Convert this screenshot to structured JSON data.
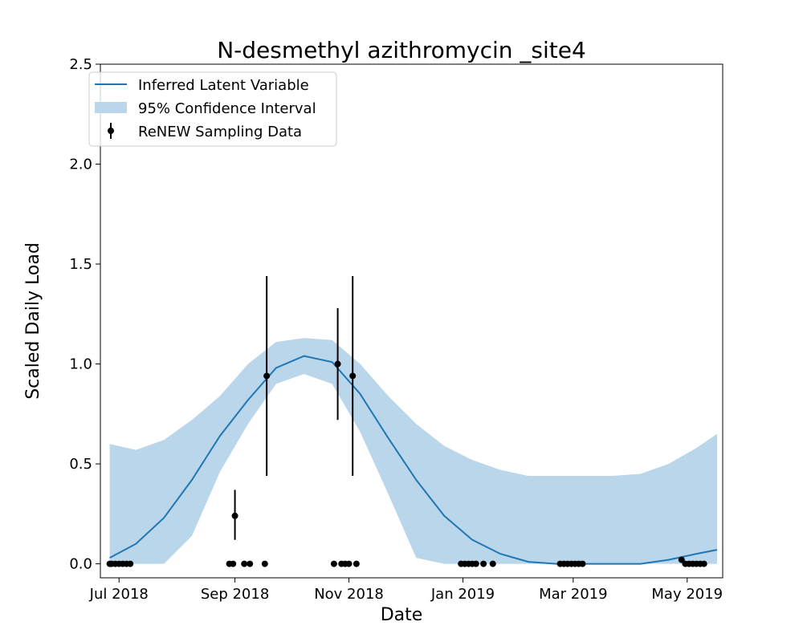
{
  "chart_data": {
    "type": "line",
    "title": "N-desmethyl azithromycin _site4",
    "xlabel": "Date",
    "ylabel": "Scaled Daily Load",
    "xlim": [
      "2018-06-21",
      "2019-05-20"
    ],
    "ylim": [
      -0.07,
      2.5
    ],
    "x_ticks": [
      "2018-07-01",
      "2018-09-01",
      "2018-11-01",
      "2019-01-01",
      "2019-03-01",
      "2019-05-01"
    ],
    "x_tick_labels": [
      "Jul 2018",
      "Sep 2018",
      "Nov 2018",
      "Jan 2019",
      "Mar 2019",
      "May 2019"
    ],
    "y_ticks": [
      0.0,
      0.5,
      1.0,
      1.5,
      2.0,
      2.5
    ],
    "y_tick_labels": [
      "0.0",
      "0.5",
      "1.0",
      "1.5",
      "2.0",
      "2.5"
    ],
    "grid": false,
    "legend_position": "top-left",
    "colors": {
      "line": "#1f77b4",
      "band": "#bad6ea",
      "points": "#000000"
    },
    "series": [
      {
        "name": "Inferred Latent Variable",
        "kind": "line",
        "x": [
          "2018-06-26",
          "2018-07-10",
          "2018-07-25",
          "2018-08-09",
          "2018-08-24",
          "2018-09-08",
          "2018-09-23",
          "2018-10-08",
          "2018-10-23",
          "2018-11-07",
          "2018-11-22",
          "2018-12-07",
          "2018-12-22",
          "2019-01-06",
          "2019-01-21",
          "2019-02-05",
          "2019-02-20",
          "2019-03-07",
          "2019-03-22",
          "2019-04-06",
          "2019-04-21",
          "2019-05-06",
          "2019-05-17"
        ],
        "y": [
          0.03,
          0.1,
          0.23,
          0.42,
          0.64,
          0.82,
          0.98,
          1.04,
          1.01,
          0.85,
          0.63,
          0.42,
          0.24,
          0.12,
          0.05,
          0.01,
          0.0,
          0.0,
          0.0,
          0.0,
          0.02,
          0.05,
          0.07
        ]
      },
      {
        "name": "95% Confidence Interval",
        "kind": "band",
        "x": [
          "2018-06-26",
          "2018-07-10",
          "2018-07-25",
          "2018-08-09",
          "2018-08-24",
          "2018-09-08",
          "2018-09-23",
          "2018-10-08",
          "2018-10-23",
          "2018-11-07",
          "2018-11-22",
          "2018-12-07",
          "2018-12-22",
          "2019-01-06",
          "2019-01-21",
          "2019-02-05",
          "2019-02-20",
          "2019-03-07",
          "2019-03-22",
          "2019-04-06",
          "2019-04-21",
          "2019-05-06",
          "2019-05-17"
        ],
        "lower": [
          0.0,
          0.0,
          0.0,
          0.14,
          0.46,
          0.7,
          0.9,
          0.95,
          0.9,
          0.66,
          0.35,
          0.03,
          0.0,
          0.0,
          0.0,
          0.0,
          0.0,
          0.0,
          0.0,
          0.0,
          0.0,
          0.0,
          0.0
        ],
        "upper": [
          0.6,
          0.57,
          0.62,
          0.72,
          0.84,
          1.0,
          1.11,
          1.13,
          1.12,
          1.0,
          0.84,
          0.7,
          0.59,
          0.52,
          0.47,
          0.44,
          0.44,
          0.44,
          0.44,
          0.45,
          0.5,
          0.58,
          0.65
        ]
      },
      {
        "name": "ReNEW Sampling Data",
        "kind": "errorbar",
        "points": [
          {
            "x": "2018-06-26",
            "y": 0.0
          },
          {
            "x": "2018-06-27",
            "y": 0.0
          },
          {
            "x": "2018-06-29",
            "y": 0.0
          },
          {
            "x": "2018-07-01",
            "y": 0.0
          },
          {
            "x": "2018-07-03",
            "y": 0.0
          },
          {
            "x": "2018-07-05",
            "y": 0.0
          },
          {
            "x": "2018-07-07",
            "y": 0.0
          },
          {
            "x": "2018-08-29",
            "y": 0.0
          },
          {
            "x": "2018-08-31",
            "y": 0.0
          },
          {
            "x": "2018-09-01",
            "y": 0.24,
            "err_low": 0.12,
            "err_high": 0.37
          },
          {
            "x": "2018-09-06",
            "y": 0.0
          },
          {
            "x": "2018-09-09",
            "y": 0.0
          },
          {
            "x": "2018-09-17",
            "y": 0.0
          },
          {
            "x": "2018-09-18",
            "y": 0.94,
            "err_low": 0.44,
            "err_high": 1.44
          },
          {
            "x": "2018-10-24",
            "y": 0.0
          },
          {
            "x": "2018-10-26",
            "y": 1.0,
            "err_low": 0.72,
            "err_high": 1.28
          },
          {
            "x": "2018-10-28",
            "y": 0.0
          },
          {
            "x": "2018-10-30",
            "y": 0.0
          },
          {
            "x": "2018-11-01",
            "y": 0.0
          },
          {
            "x": "2018-11-03",
            "y": 0.94,
            "err_low": 0.44,
            "err_high": 1.44
          },
          {
            "x": "2018-11-05",
            "y": 0.0
          },
          {
            "x": "2018-12-31",
            "y": 0.0
          },
          {
            "x": "2019-01-02",
            "y": 0.0
          },
          {
            "x": "2019-01-04",
            "y": 0.0
          },
          {
            "x": "2019-01-06",
            "y": 0.0
          },
          {
            "x": "2019-01-08",
            "y": 0.0
          },
          {
            "x": "2019-01-12",
            "y": 0.0
          },
          {
            "x": "2019-01-17",
            "y": 0.0
          },
          {
            "x": "2019-02-22",
            "y": 0.0
          },
          {
            "x": "2019-02-24",
            "y": 0.0
          },
          {
            "x": "2019-02-26",
            "y": 0.0
          },
          {
            "x": "2019-02-28",
            "y": 0.0
          },
          {
            "x": "2019-03-02",
            "y": 0.0
          },
          {
            "x": "2019-03-04",
            "y": 0.0
          },
          {
            "x": "2019-03-06",
            "y": 0.0
          },
          {
            "x": "2019-04-28",
            "y": 0.02
          },
          {
            "x": "2019-04-30",
            "y": 0.0
          },
          {
            "x": "2019-05-02",
            "y": 0.0
          },
          {
            "x": "2019-05-04",
            "y": 0.0
          },
          {
            "x": "2019-05-06",
            "y": 0.0
          },
          {
            "x": "2019-05-08",
            "y": 0.0
          },
          {
            "x": "2019-05-10",
            "y": 0.0
          }
        ]
      }
    ]
  }
}
